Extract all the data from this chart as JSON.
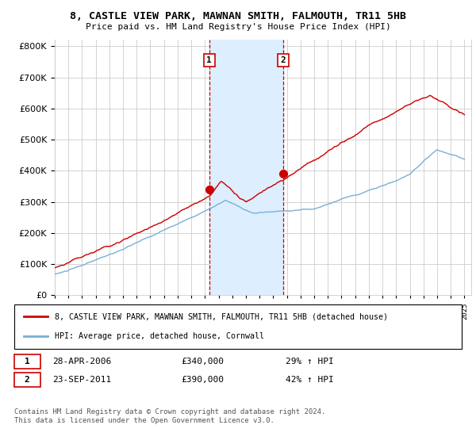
{
  "title": "8, CASTLE VIEW PARK, MAWNAN SMITH, FALMOUTH, TR11 5HB",
  "subtitle": "Price paid vs. HM Land Registry's House Price Index (HPI)",
  "legend_line1": "8, CASTLE VIEW PARK, MAWNAN SMITH, FALMOUTH, TR11 5HB (detached house)",
  "legend_line2": "HPI: Average price, detached house, Cornwall",
  "sale1_label": "1",
  "sale1_date": "28-APR-2006",
  "sale1_price": "£340,000",
  "sale1_hpi": "29% ↑ HPI",
  "sale1_year": 2006.32,
  "sale1_value": 340000,
  "sale2_label": "2",
  "sale2_date": "23-SEP-2011",
  "sale2_price": "£390,000",
  "sale2_hpi": "42% ↑ HPI",
  "sale2_year": 2011.72,
  "sale2_value": 390000,
  "red_color": "#cc0000",
  "blue_color": "#7ab0d4",
  "shade_color": "#ddeeff",
  "grid_color": "#cccccc",
  "background_color": "#ffffff",
  "ylim_min": 0,
  "ylim_max": 820000,
  "yticks": [
    0,
    100000,
    200000,
    300000,
    400000,
    500000,
    600000,
    700000,
    800000
  ],
  "footer": "Contains HM Land Registry data © Crown copyright and database right 2024.\nThis data is licensed under the Open Government Licence v3.0."
}
